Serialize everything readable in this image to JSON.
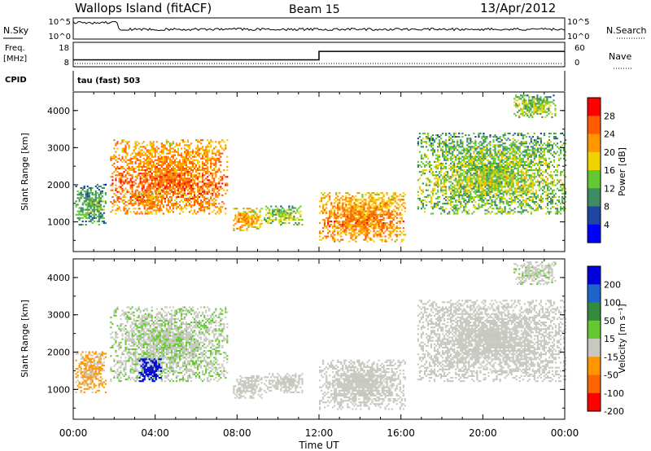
{
  "header": {
    "station": "Wallops Island (fitACF)",
    "beam": "Beam 15",
    "date": "13/Apr/2012"
  },
  "noise_panel": {
    "left_label": "N.Sky",
    "right_label": "N.Search",
    "left_ticks": [
      "10^5",
      "10^0"
    ],
    "right_ticks": [
      "10^5",
      "10^0"
    ]
  },
  "freq_panel": {
    "left_label_1": "Freq.",
    "left_label_2": "[MHz]",
    "right_label": "Nave",
    "left_ticks": [
      "18",
      "8"
    ],
    "right_ticks": [
      "60",
      "0"
    ]
  },
  "cpid_panel": {
    "label": "CPID",
    "text": "tau (fast) 503"
  },
  "power_panel": {
    "ylabel": "Slant Range [km]",
    "colorbar_label": "Power [dB]"
  },
  "velocity_panel": {
    "ylabel": "Slant Range [km]",
    "colorbar_label": "Velocity [m s⁻¹]"
  },
  "chart_data": {
    "type": "heatmap",
    "xlabel": "Time UT",
    "x_ticks": [
      "00:00",
      "04:00",
      "08:00",
      "12:00",
      "16:00",
      "20:00",
      "00:00"
    ],
    "xlim_hours": [
      0,
      24
    ],
    "y_ticks": [
      1000,
      2000,
      3000,
      4000
    ],
    "ylim_km": [
      200,
      4500
    ],
    "power_colorbar": {
      "ticks": [
        "28",
        "24",
        "20",
        "16",
        "12",
        "8",
        "4"
      ],
      "colors": [
        "#ff0000",
        "#ff5a00",
        "#ff9600",
        "#f0d200",
        "#64c832",
        "#3c8c64",
        "#1e46a0",
        "#0000ff"
      ]
    },
    "velocity_colorbar": {
      "ticks": [
        "200",
        "100",
        "50",
        "15",
        "-15",
        "-50",
        "-100",
        "-200"
      ],
      "colors": [
        "#0000dc",
        "#1e64c8",
        "#328c3c",
        "#64c832",
        "#c8c8c0",
        "#ff9600",
        "#ff6400",
        "#ff0000"
      ]
    },
    "frequency_mhz": [
      {
        "from_hour": 0,
        "to_hour": 12,
        "value": 10.5
      },
      {
        "from_hour": 12,
        "to_hour": 24,
        "value": 14.5
      }
    ],
    "scatter_regions": [
      {
        "t0": 0.1,
        "t1": 1.6,
        "r0": 900,
        "r1": 2000,
        "power": 9,
        "velocity": -20
      },
      {
        "t0": 1.8,
        "t1": 7.5,
        "r0": 1200,
        "r1": 3200,
        "power": 21,
        "velocity": 10
      },
      {
        "t0": 3.2,
        "t1": 4.3,
        "r0": 1200,
        "r1": 1800,
        "power": 20,
        "velocity": 220
      },
      {
        "t0": 7.8,
        "t1": 9.2,
        "r0": 750,
        "r1": 1350,
        "power": 18,
        "velocity": 0
      },
      {
        "t0": 9.3,
        "t1": 11.2,
        "r0": 900,
        "r1": 1400,
        "power": 12,
        "velocity": 0
      },
      {
        "t0": 12.0,
        "t1": 16.2,
        "r0": 450,
        "r1": 1800,
        "power": 20,
        "velocity": 0
      },
      {
        "t0": 16.8,
        "t1": 24.0,
        "r0": 1200,
        "r1": 3400,
        "power": 12,
        "velocity": 0
      },
      {
        "t0": 21.5,
        "t1": 23.5,
        "r0": 3800,
        "r1": 4400,
        "power": 12,
        "velocity": 5
      }
    ]
  }
}
